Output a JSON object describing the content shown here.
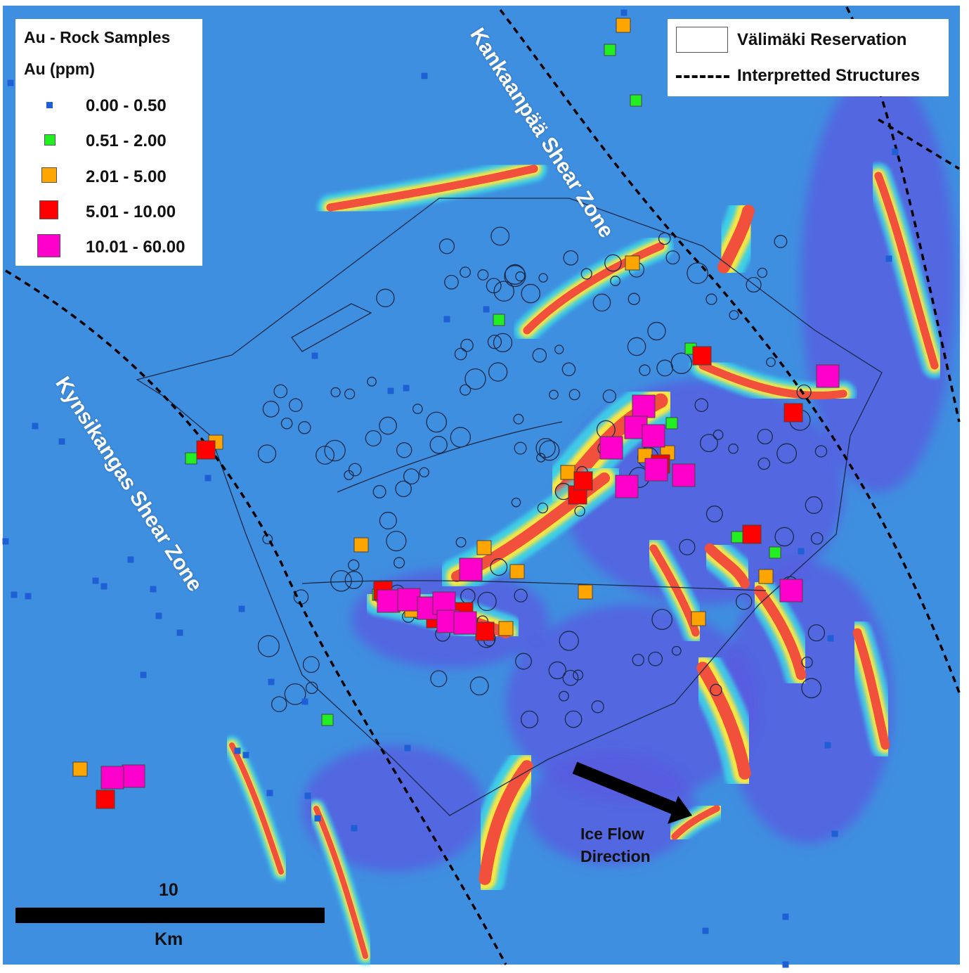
{
  "au_legend": {
    "title": "Au - Rock Samples",
    "unit": "Au (ppm)",
    "classes": [
      {
        "label": "0.00 - 0.50",
        "color": "#1f5fd6"
      },
      {
        "label": "0.51 - 2.00",
        "color": "#22ee22"
      },
      {
        "label": "2.01 - 5.00",
        "color": "#ffa500"
      },
      {
        "label": "5.01 - 10.00",
        "color": "#ff0000"
      },
      {
        "label": "10.01 - 60.00",
        "color": "#ff00cc"
      }
    ]
  },
  "structure_legend": {
    "reservation_label": "Välimäki Reservation",
    "structures_label": "Interpretted Structures"
  },
  "map_labels": {
    "kankaanpaa": "Kankaanpää Shear Zone",
    "kynsikangas": "Kynsikangas Shear Zone",
    "ice_flow_line1": "Ice Flow",
    "ice_flow_line2": "Direction"
  },
  "scale_bar": {
    "value": "10",
    "unit": "Km"
  },
  "colors": {
    "background": "#3f8fe0",
    "anomaly_low": "#3ee0e8",
    "anomaly_mid": "#ffe640",
    "anomaly_high": "#f0503c",
    "low": "#5a5ae0"
  }
}
